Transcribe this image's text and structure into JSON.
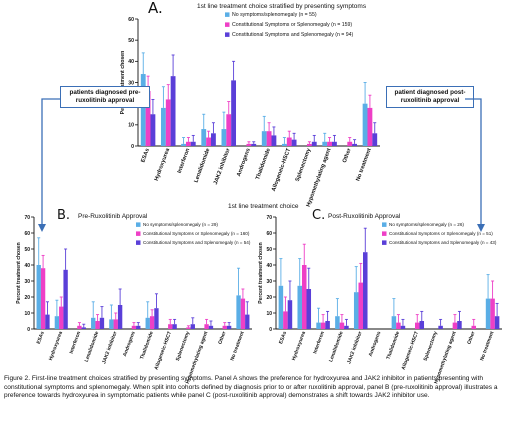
{
  "colors": {
    "series": [
      "#5aaee6",
      "#ee3fc6",
      "#5a3fd8"
    ],
    "arrow": "#3b6fb6"
  },
  "categories": [
    "ESAs",
    "Hydroxyurea",
    "Interferon",
    "Lenalidomide",
    "JAK2 inhibitor",
    "Androgens",
    "Thalidomide",
    "Allogeneic-HSCT",
    "Splenectomy",
    "Hypomethylating agent",
    "Other",
    "No treatment"
  ],
  "panelA": {
    "letter": "A.",
    "title": "1st line treatment choice stratified by presenting symptoms"
  },
  "panelB": {
    "letter": "B.",
    "title": "Pre-Ruxolitinib Approval"
  },
  "panelC": {
    "letter": "C.",
    "title": "Post-Ruxolitinib Approval"
  },
  "middle_label": "1st line treatment choice",
  "left_box": "patients diagnosed pre- ruxolitinib approval",
  "right_box": "patient diagnosed post-ruxolitinib approval",
  "caption": "Figure 2. First-line treatment choices stratified by presenting symptoms. Panel A shows the preference for hydroxyurea and JAK2 inhibitor in patients presenting with constitutional symptoms and splenomegaly. When split into cohorts defined by diagnosis prior to or after ruxolitinib approval, panel B (pre-ruxolitinib approval) illustrates a preference towards hydroxyurea in symptomatic patients while panel C (post-ruxolitinib approval) demonstrates a shift towards JAK2 inhibitor use.",
  "chart_data": [
    {
      "type": "bar",
      "id": "A",
      "ylabel": "Percent treatment chosen",
      "ylim": [
        0,
        60
      ],
      "yticks": [
        0,
        10,
        20,
        30,
        40,
        50,
        60
      ],
      "legend_position": "top-right",
      "series": [
        {
          "name": "No symptoms/splenomegaly (n = 55)",
          "values": [
            34,
            18,
            1,
            8,
            8,
            0,
            7,
            1,
            0,
            2,
            0,
            20
          ],
          "errors": [
            10,
            10,
            3,
            7,
            8,
            0,
            7,
            3,
            0,
            4,
            0,
            10
          ]
        },
        {
          "name": "Constitutional Symptoms or Splenomegaly (n = 159)",
          "values": [
            26,
            22,
            2,
            4,
            15,
            1,
            7,
            4,
            1,
            2,
            2,
            18
          ],
          "errors": [
            7,
            7,
            2,
            3,
            6,
            1,
            4,
            3,
            1,
            2,
            2,
            6
          ]
        },
        {
          "name": "Constitutional Symptoms and Splenomegaly (n = 94)",
          "values": [
            15,
            33,
            2,
            6,
            31,
            1,
            5,
            3,
            2,
            2,
            1,
            6
          ],
          "errors": [
            7,
            10,
            3,
            5,
            9,
            1,
            4,
            3,
            3,
            3,
            2,
            5
          ]
        }
      ]
    },
    {
      "type": "bar",
      "id": "B",
      "ylabel": "Percent treatment chosen",
      "ylim": [
        0,
        70
      ],
      "yticks": [
        0,
        10,
        20,
        30,
        40,
        50,
        60,
        70
      ],
      "legend_position": "top-right",
      "series": [
        {
          "name": "No symptoms/splenomegaly (n = 29)",
          "values": [
            40,
            8,
            0,
            7,
            6,
            0,
            7,
            0,
            0,
            0,
            0,
            21
          ],
          "errors": [
            17,
            10,
            0,
            10,
            9,
            0,
            10,
            0,
            0,
            0,
            0,
            17
          ]
        },
        {
          "name": "Constitutional Symptoms or Splenomegaly (n = 160)",
          "values": [
            38,
            14,
            2,
            5,
            6,
            2,
            8,
            3,
            1,
            3,
            2,
            19
          ],
          "errors": [
            8,
            6,
            2,
            4,
            4,
            2,
            4,
            3,
            1,
            3,
            2,
            6
          ]
        },
        {
          "name": "Constitutional Symptoms and Splenomegaly (n = 54)",
          "values": [
            9,
            37,
            1,
            7,
            15,
            2,
            13,
            3,
            3,
            2,
            2,
            9
          ],
          "errors": [
            8,
            13,
            2,
            7,
            10,
            2,
            9,
            3,
            4,
            3,
            2,
            8
          ]
        }
      ]
    },
    {
      "type": "bar",
      "id": "C",
      "ylabel": "Percent treatment chosen",
      "ylim": [
        0,
        70
      ],
      "yticks": [
        0,
        10,
        20,
        30,
        40,
        50,
        60,
        70
      ],
      "legend_position": "top-right",
      "series": [
        {
          "name": "No symptoms/splenomegaly (n = 26)",
          "values": [
            27,
            27,
            4,
            8,
            23,
            0,
            8,
            0,
            0,
            0,
            0,
            19
          ],
          "errors": [
            17,
            17,
            9,
            11,
            16,
            0,
            11,
            0,
            0,
            0,
            0,
            15
          ]
        },
        {
          "name": "Constitutional Symptoms or Splenomegaly (n = 51)",
          "values": [
            11,
            40,
            4,
            4,
            29,
            0,
            4,
            4,
            0,
            4,
            2,
            19
          ],
          "errors": [
            9,
            13,
            5,
            5,
            12,
            0,
            5,
            5,
            0,
            5,
            4,
            11
          ]
        },
        {
          "name": "Constitutional Symptoms and Splenomegaly (n = 43)",
          "values": [
            18,
            25,
            5,
            2,
            48,
            0,
            2,
            5,
            2,
            5,
            0,
            8
          ],
          "errors": [
            12,
            13,
            6,
            4,
            15,
            0,
            4,
            6,
            4,
            6,
            0,
            8
          ]
        }
      ]
    }
  ]
}
